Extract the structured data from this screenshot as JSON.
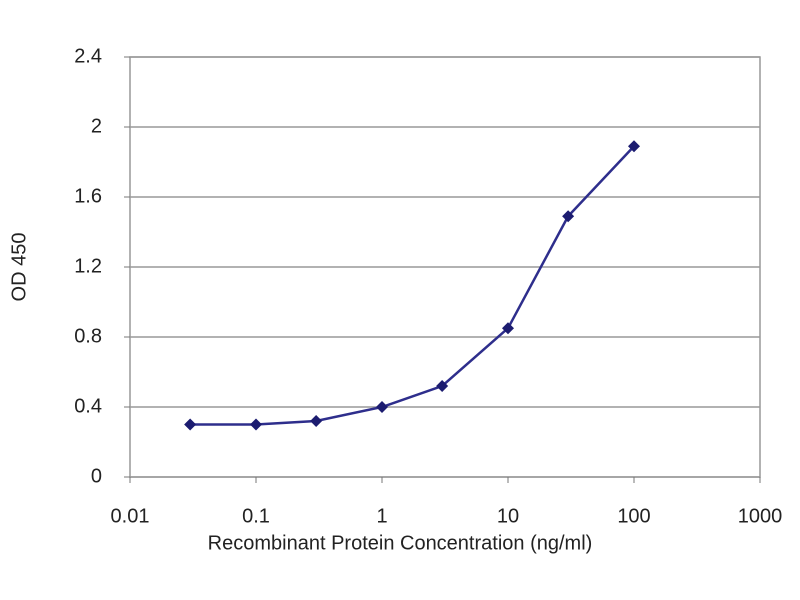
{
  "chart_data": {
    "type": "line",
    "x_label": "Recombinant Protein Concentration (ng/ml)",
    "y_label": "OD 450",
    "x": [
      0.03,
      0.1,
      0.3,
      1,
      3,
      10,
      30,
      100
    ],
    "values": [
      0.3,
      0.3,
      0.32,
      0.4,
      0.52,
      0.85,
      1.49,
      1.89
    ],
    "color": "#2e2e8c",
    "xscale": "log",
    "xlim": [
      0.01,
      1000
    ],
    "xticks": [
      0.01,
      0.1,
      1,
      10,
      100,
      1000
    ],
    "ylim": [
      0,
      2.4
    ],
    "yticks": [
      0,
      0.4,
      0.8,
      1.2,
      1.6,
      2,
      2.4
    ],
    "grid": true
  }
}
